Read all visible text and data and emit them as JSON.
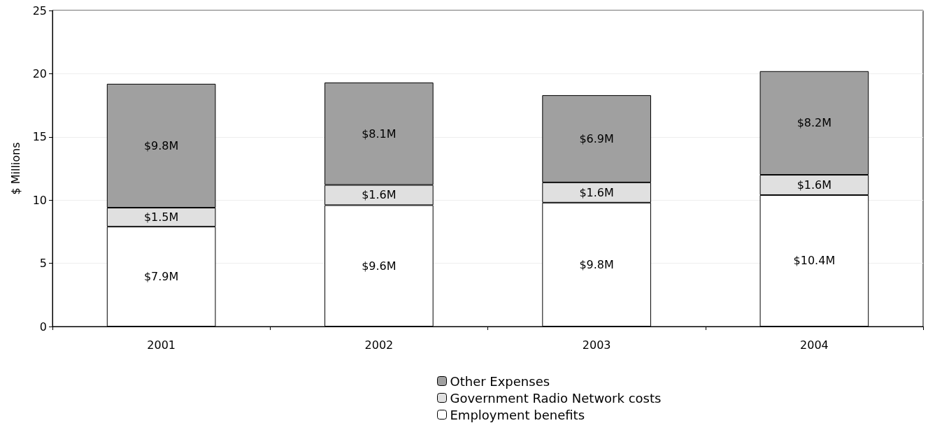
{
  "chart_data": {
    "type": "bar",
    "stacked": true,
    "ylabel": "$ Millions",
    "categories": [
      "2001",
      "2002",
      "2003",
      "2004"
    ],
    "series": [
      {
        "name": "Employment benefits",
        "color": "#ffffff",
        "values": [
          7.9,
          9.6,
          9.8,
          10.4
        ],
        "value_labels": [
          "$7.9M",
          "$9.6M",
          "$9.8M",
          "$10.4M"
        ]
      },
      {
        "name": "Government Radio Network costs",
        "color": "#e0e0e0",
        "values": [
          1.5,
          1.6,
          1.6,
          1.6
        ],
        "value_labels": [
          "$1.5M",
          "$1.6M",
          "$1.6M",
          "$1.6M"
        ]
      },
      {
        "name": "Other Expenses",
        "color": "#a0a0a0",
        "values": [
          9.8,
          8.1,
          6.9,
          8.2
        ],
        "value_labels": [
          "$9.8M",
          "$8.1M",
          "$6.9M",
          "$8.2M"
        ]
      }
    ],
    "ylim": [
      0,
      25
    ],
    "yticks": [
      0,
      5,
      10,
      15,
      20,
      25
    ],
    "grid": "y",
    "legend": "bottom"
  }
}
